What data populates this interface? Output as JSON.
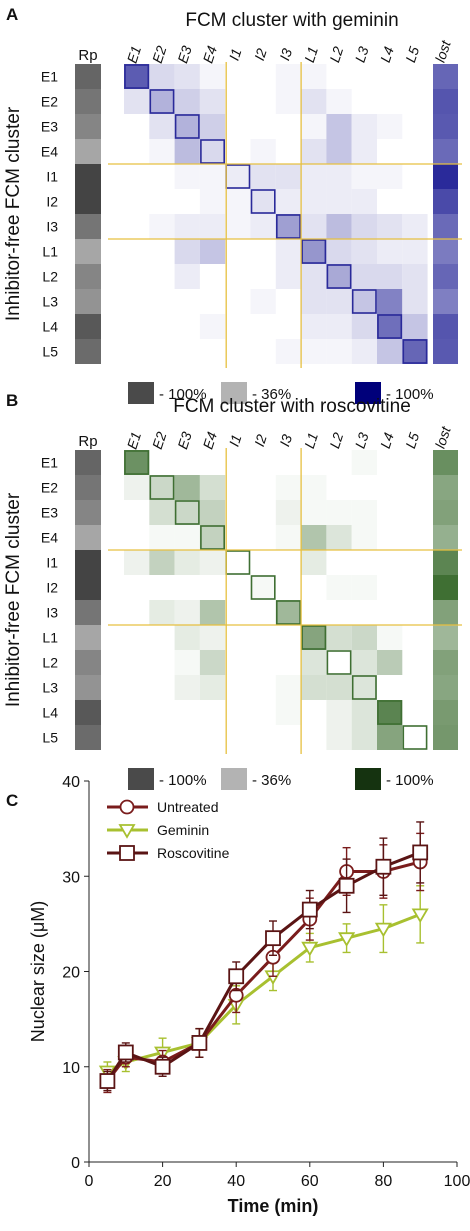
{
  "figure": {
    "panel_labels": [
      "A",
      "B",
      "C"
    ],
    "colors": {
      "gray_dark": "#4a4a4a",
      "gray_light": "#b3b3b3",
      "blue": "#2a2a9a",
      "blue_dark": "#00007a",
      "green": "#3f6f33",
      "green_dark": "#153310",
      "divider": "#e6c040",
      "untreated": "#7a1c1c",
      "geminin": "#a8c030",
      "roscovitine": "#5a1414"
    }
  },
  "chart_data": [
    {
      "type": "heatmap",
      "panel": "A",
      "title": "FCM cluster with geminin",
      "ylabel": "Inhibitor-free FCM cluster",
      "rows": [
        "E1",
        "E2",
        "E3",
        "E4",
        "I1",
        "I2",
        "I3",
        "L1",
        "L2",
        "L3",
        "L4",
        "L5"
      ],
      "columns": [
        "E1",
        "E2",
        "E3",
        "E4",
        "I1",
        "I2",
        "I3",
        "L1",
        "L2",
        "L3",
        "L4",
        "L5"
      ],
      "extra_column": "lost",
      "rp_column": "Rp",
      "rp_values": [
        0.78,
        0.7,
        0.62,
        0.45,
        0.95,
        0.95,
        0.7,
        0.45,
        0.62,
        0.55,
        0.85,
        0.75
      ],
      "values": [
        [
          0.85,
          0.2,
          0.15,
          0.05,
          0,
          0,
          0.05,
          0.05,
          0,
          0,
          0,
          0
        ],
        [
          0.15,
          0.4,
          0.25,
          0.15,
          0,
          0,
          0.05,
          0.15,
          0.05,
          0,
          0,
          0
        ],
        [
          0,
          0.15,
          0.4,
          0.25,
          0,
          0,
          0,
          0.05,
          0.3,
          0.1,
          0.05,
          0
        ],
        [
          0,
          0.05,
          0.35,
          0.2,
          0,
          0.05,
          0,
          0.15,
          0.3,
          0.1,
          0,
          0
        ],
        [
          0,
          0,
          0.05,
          0.05,
          0.1,
          0.15,
          0.15,
          0.1,
          0.1,
          0.05,
          0.05,
          0
        ],
        [
          0,
          0,
          0,
          0.05,
          0.05,
          0.15,
          0.1,
          0.1,
          0.1,
          0.1,
          0,
          0
        ],
        [
          0,
          0.05,
          0.1,
          0.1,
          0.05,
          0.1,
          0.5,
          0.15,
          0.35,
          0.2,
          0.15,
          0.1
        ],
        [
          0,
          0,
          0.2,
          0.3,
          0,
          0,
          0.1,
          0.55,
          0.2,
          0.15,
          0.1,
          0.1
        ],
        [
          0,
          0,
          0.1,
          0,
          0,
          0,
          0.1,
          0.15,
          0.45,
          0.2,
          0.2,
          0.15
        ],
        [
          0,
          0,
          0,
          0,
          0,
          0.05,
          0,
          0.15,
          0.15,
          0.3,
          0.65,
          0.15
        ],
        [
          0,
          0,
          0,
          0.05,
          0,
          0,
          0,
          0.1,
          0.1,
          0.2,
          0.75,
          0.3
        ],
        [
          0,
          0,
          0,
          0,
          0,
          0,
          0.05,
          0.05,
          0.05,
          0.1,
          0.3,
          0.8
        ]
      ],
      "lost": [
        0.72,
        0.8,
        0.78,
        0.7,
        1.0,
        0.85,
        0.7,
        0.62,
        0.72,
        0.6,
        0.8,
        0.78
      ],
      "legend": [
        "- 100%",
        "- 36%",
        "- 100%"
      ]
    },
    {
      "type": "heatmap",
      "panel": "B",
      "title": "FCM cluster with roscovitine",
      "ylabel": "Inhibitor-free FCM cluster",
      "rows": [
        "E1",
        "E2",
        "E3",
        "E4",
        "I1",
        "I2",
        "I3",
        "L1",
        "L2",
        "L3",
        "L4",
        "L5"
      ],
      "columns": [
        "E1",
        "E2",
        "E3",
        "E4",
        "I1",
        "I2",
        "I3",
        "L1",
        "L2",
        "L3",
        "L4",
        "L5"
      ],
      "extra_column": "lost",
      "rp_column": "Rp",
      "rp_values": [
        0.78,
        0.7,
        0.62,
        0.45,
        0.95,
        0.95,
        0.7,
        0.45,
        0.62,
        0.55,
        0.85,
        0.75
      ],
      "values": [
        [
          0.85,
          0,
          0,
          0,
          0,
          0,
          0,
          0,
          0,
          0.05,
          0,
          0
        ],
        [
          0.1,
          0.3,
          0.55,
          0.25,
          0,
          0,
          0.05,
          0.05,
          0,
          0,
          0,
          0
        ],
        [
          0,
          0.25,
          0.3,
          0.35,
          0,
          0,
          0.1,
          0.05,
          0.05,
          0.05,
          0,
          0
        ],
        [
          0,
          0.05,
          0.05,
          0.35,
          0,
          0,
          0.05,
          0.45,
          0.2,
          0.05,
          0,
          0
        ],
        [
          0.1,
          0.35,
          0.15,
          0.1,
          0,
          0,
          0,
          0.15,
          0,
          0,
          0,
          0
        ],
        [
          0,
          0,
          0,
          0,
          0,
          0.05,
          0,
          0,
          0.05,
          0.05,
          0,
          0
        ],
        [
          0,
          0.15,
          0.1,
          0.45,
          0,
          0,
          0.55,
          0,
          0,
          0,
          0,
          0
        ],
        [
          0,
          0,
          0.15,
          0.1,
          0,
          0,
          0,
          0.7,
          0.25,
          0.3,
          0.05,
          0
        ],
        [
          0,
          0,
          0.05,
          0.3,
          0,
          0,
          0,
          0.2,
          0,
          0.2,
          0.4,
          0
        ],
        [
          0,
          0,
          0.1,
          0.15,
          0,
          0,
          0.05,
          0.25,
          0.25,
          0.2,
          0,
          0
        ],
        [
          0,
          0,
          0,
          0,
          0,
          0,
          0.05,
          0,
          0.1,
          0.2,
          0.95,
          0
        ],
        [
          0,
          0,
          0,
          0,
          0,
          0,
          0,
          0,
          0.1,
          0.2,
          0.7,
          0
        ]
      ],
      "lost": [
        0.78,
        0.62,
        0.65,
        0.55,
        0.85,
        1.0,
        0.65,
        0.5,
        0.65,
        0.62,
        0.7,
        0.72
      ],
      "legend": [
        "- 100%",
        "- 36%",
        "- 100%"
      ]
    },
    {
      "type": "line",
      "panel": "C",
      "title": "",
      "xlabel": "Time (min)",
      "ylabel": "Nuclear size (μM)",
      "xlim": [
        0,
        100
      ],
      "ylim": [
        0,
        40
      ],
      "xticks": [
        0,
        20,
        40,
        60,
        80,
        100
      ],
      "yticks": [
        0,
        10,
        20,
        30,
        40
      ],
      "legend_position": "top-left",
      "x": [
        5,
        10,
        20,
        30,
        40,
        50,
        60,
        70,
        80,
        90
      ],
      "series": [
        {
          "name": "Untreated",
          "marker": "circle",
          "values": [
            8.5,
            11,
            10.5,
            12.5,
            17.5,
            21.5,
            25.5,
            30.5,
            30.5,
            31.5
          ],
          "errors": [
            1.2,
            1.0,
            1.2,
            1.5,
            1.8,
            2.0,
            2.2,
            2.5,
            2.8,
            3.0
          ]
        },
        {
          "name": "Geminin",
          "marker": "triangle",
          "values": [
            9.5,
            10.5,
            11.5,
            12.5,
            16.5,
            19.5,
            22.5,
            23.5,
            24.5,
            26.0
          ],
          "errors": [
            1.0,
            1.0,
            1.5,
            1.5,
            2.0,
            1.5,
            1.5,
            1.5,
            2.5,
            3.0
          ]
        },
        {
          "name": "Roscovitine",
          "marker": "square",
          "values": [
            8.5,
            11.5,
            10,
            12.5,
            19.5,
            23.5,
            26.5,
            29,
            31,
            32.5
          ],
          "errors": [
            1.0,
            1.0,
            1.0,
            1.5,
            1.5,
            1.8,
            2.0,
            2.8,
            3.0,
            3.2
          ]
        }
      ]
    }
  ]
}
